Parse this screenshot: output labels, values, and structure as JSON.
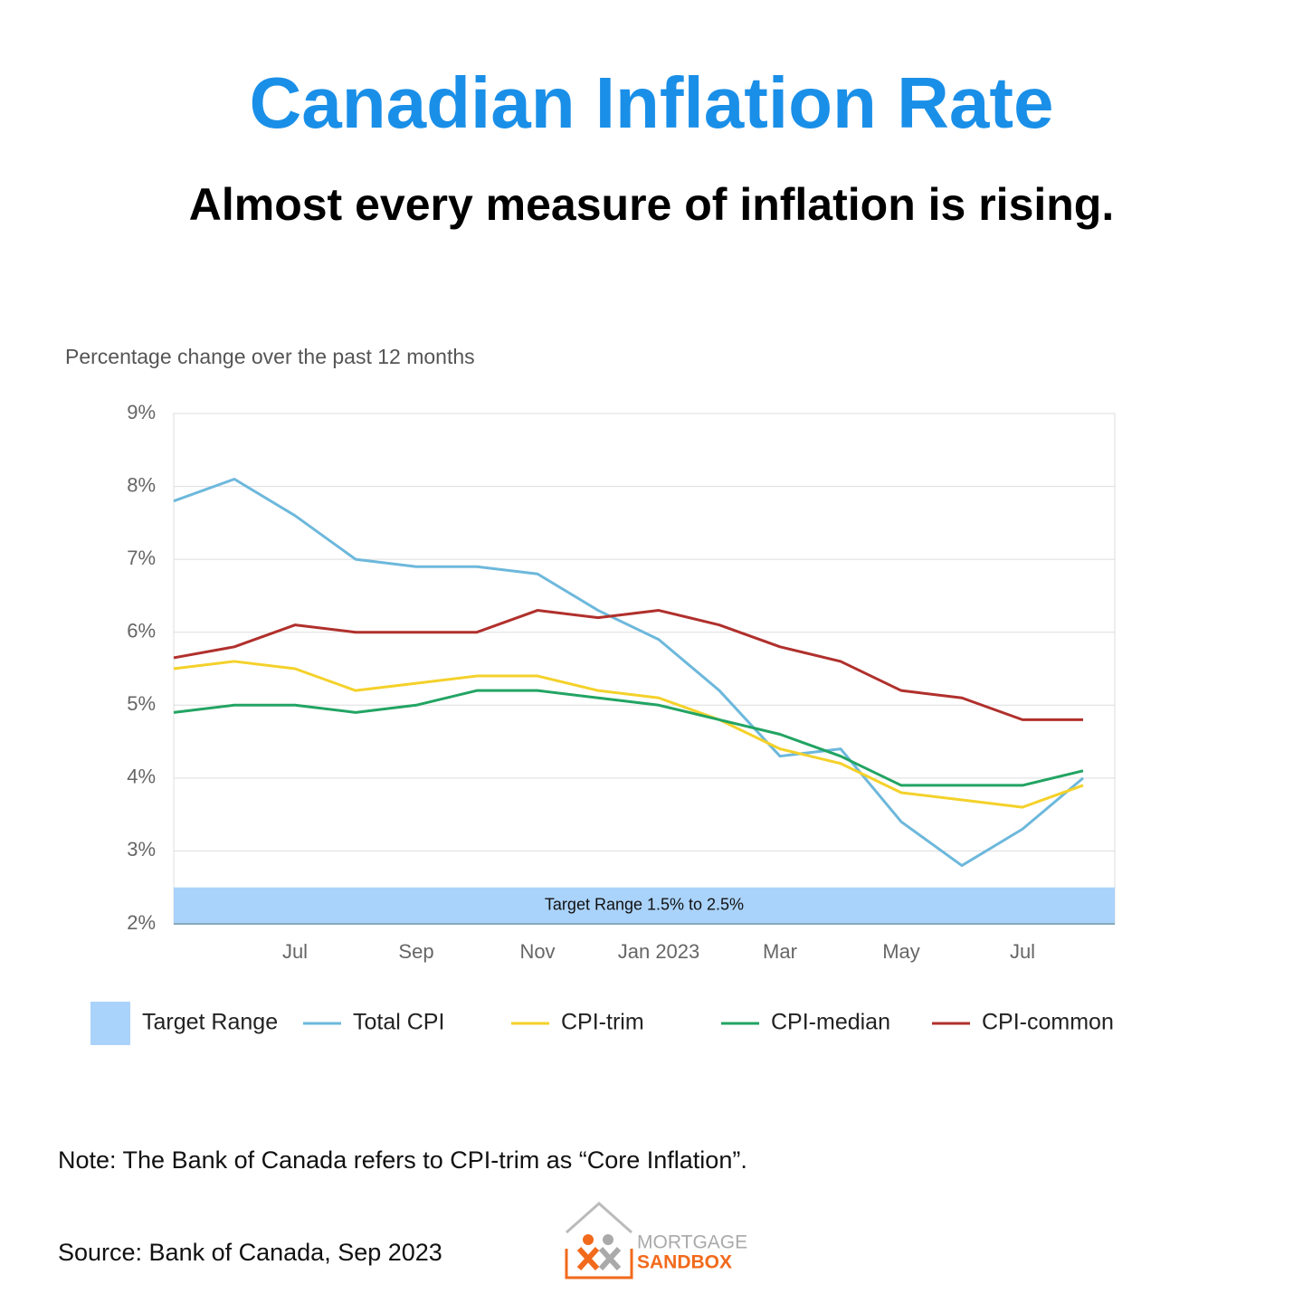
{
  "chart_data": {
    "type": "line",
    "title": "Canadian Inflation Rate",
    "subtitle": "Almost every measure of inflation is rising.",
    "y_label": "Percentage change over the past 12 months",
    "categories": [
      null,
      null,
      "Jul",
      null,
      "Sep",
      null,
      "Nov",
      null,
      "Jan 2023",
      null,
      "Mar",
      null,
      "May",
      null,
      "Jul",
      null
    ],
    "band": {
      "name": "Target Range",
      "label": "Target Range 1.5% to 2.5%",
      "range": [
        1.5,
        2.5
      ],
      "color": "#aad3fb"
    },
    "series": [
      {
        "name": "Total CPI",
        "color": "#6db8dc",
        "values": [
          7.8,
          8.1,
          7.6,
          7.0,
          6.9,
          6.9,
          6.8,
          6.3,
          5.9,
          5.2,
          4.3,
          4.4,
          3.4,
          2.8,
          3.3,
          4.0
        ]
      },
      {
        "name": "CPI-trim",
        "color": "#f4d12a",
        "values": [
          5.5,
          5.6,
          5.5,
          5.2,
          5.3,
          5.4,
          5.4,
          5.2,
          5.1,
          4.8,
          4.4,
          4.2,
          3.8,
          3.7,
          3.6,
          3.9
        ]
      },
      {
        "name": "CPI-median",
        "color": "#22a463",
        "values": [
          4.9,
          5.0,
          5.0,
          4.9,
          5.0,
          5.2,
          5.2,
          5.1,
          5.0,
          4.8,
          4.6,
          4.3,
          3.9,
          3.9,
          3.9,
          4.1
        ]
      },
      {
        "name": "CPI-common",
        "color": "#b0302c",
        "values": [
          5.65,
          5.8,
          6.1,
          6.0,
          6.0,
          6.0,
          6.3,
          6.2,
          6.3,
          6.1,
          5.8,
          5.6,
          5.2,
          5.1,
          4.8,
          4.8
        ]
      }
    ],
    "ylim": [
      2,
      9
    ],
    "yticks": [
      {
        "value": 2,
        "label": "2%"
      },
      {
        "value": 3,
        "label": "3%"
      },
      {
        "value": 4,
        "label": "4%"
      },
      {
        "value": 5,
        "label": "5%"
      },
      {
        "value": 6,
        "label": "6%"
      },
      {
        "value": 7,
        "label": "7%"
      },
      {
        "value": 8,
        "label": "8%"
      },
      {
        "value": 9,
        "label": "9%"
      }
    ],
    "grid": true,
    "note": "Note: The Bank of Canada refers to CPI-trim as “Core Inflation”.",
    "source": "Source: Bank of Canada, Sep 2023",
    "logo_text": [
      "MORTGAGE",
      "SANDBOX"
    ]
  }
}
